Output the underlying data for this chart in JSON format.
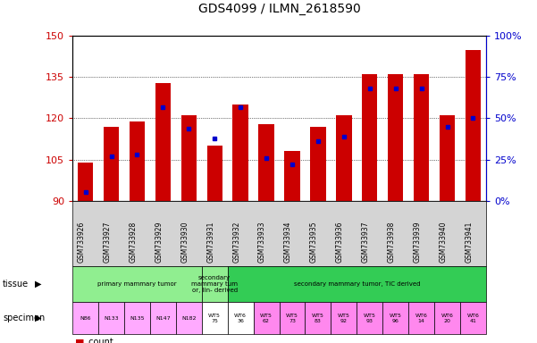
{
  "title": "GDS4099 / ILMN_2618590",
  "samples": [
    "GSM733926",
    "GSM733927",
    "GSM733928",
    "GSM733929",
    "GSM733930",
    "GSM733931",
    "GSM733932",
    "GSM733933",
    "GSM733934",
    "GSM733935",
    "GSM733936",
    "GSM733937",
    "GSM733938",
    "GSM733939",
    "GSM733940",
    "GSM733941"
  ],
  "counts": [
    104,
    117,
    119,
    133,
    121,
    110,
    125,
    118,
    108,
    117,
    121,
    136,
    136,
    136,
    121,
    145
  ],
  "percentile_ranks": [
    5,
    27,
    28,
    57,
    44,
    38,
    57,
    26,
    22,
    36,
    39,
    68,
    68,
    68,
    45,
    50
  ],
  "y_min": 90,
  "y_max": 150,
  "y_ticks_left": [
    90,
    105,
    120,
    135,
    150
  ],
  "y_right_labels": [
    "0%",
    "25%",
    "50%",
    "75%",
    "100%"
  ],
  "tissue_groups": [
    {
      "label": "primary mammary tumor",
      "start": 0,
      "end": 4,
      "color": "#90EE90"
    },
    {
      "label": "secondary\nmammary tum\nor, lin- derived",
      "start": 5,
      "end": 5,
      "color": "#90EE90"
    },
    {
      "label": "secondary mammary tumor, TIC derived",
      "start": 6,
      "end": 15,
      "color": "#33CC55"
    }
  ],
  "specimen_labels": [
    "N86",
    "N133",
    "N135",
    "N147",
    "N182",
    "WT5\n75",
    "WT6\n36",
    "WT5\n62",
    "WT5\n73",
    "WT5\n83",
    "WT5\n92",
    "WT5\n93",
    "WT5\n96",
    "WT6\n14",
    "WT6\n20",
    "WT6\n41"
  ],
  "specimen_colors_type": [
    "pink",
    "pink",
    "pink",
    "pink",
    "pink",
    "white",
    "white",
    "magenta",
    "magenta",
    "magenta",
    "magenta",
    "magenta",
    "magenta",
    "magenta",
    "magenta",
    "magenta"
  ],
  "specimen_colors": [
    "#FFAAFF",
    "#FFAAFF",
    "#FFAAFF",
    "#FFAAFF",
    "#FFAAFF",
    "#FFFFFF",
    "#FFFFFF",
    "#FF88EE",
    "#FF88EE",
    "#FF88EE",
    "#FF88EE",
    "#FF88EE",
    "#FF88EE",
    "#FF88EE",
    "#FF88EE",
    "#FF88EE"
  ],
  "bar_color": "#CC0000",
  "dot_color": "#0000CC",
  "left_label_color": "#CC0000",
  "right_label_color": "#0000CC",
  "xticklabel_bg": "#D0D0D0"
}
